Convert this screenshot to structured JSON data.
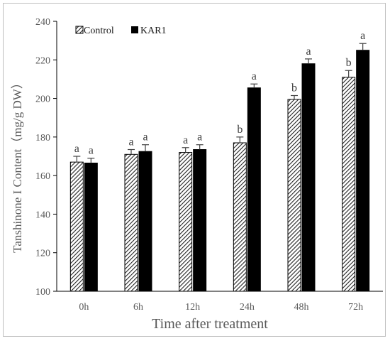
{
  "chart_data": {
    "type": "bar",
    "categories": [
      "0h",
      "6h",
      "12h",
      "24h",
      "48h",
      "72h"
    ],
    "series": [
      {
        "name": "Control",
        "values": [
          167,
          171,
          172,
          177,
          199.5,
          211
        ],
        "errors": [
          3,
          2.5,
          2.5,
          3,
          2,
          3.5
        ],
        "labels": [
          "a",
          "a",
          "a",
          "b",
          "b",
          "b"
        ],
        "color": "#ffffff",
        "pattern": "diagonal-hatch"
      },
      {
        "name": "KAR1",
        "values": [
          166.5,
          172.5,
          173.5,
          205.5,
          218,
          225
        ],
        "errors": [
          2.5,
          3.5,
          2.5,
          2,
          2.5,
          3.5
        ],
        "labels": [
          "a",
          "a",
          "a",
          "a",
          "a",
          "a"
        ],
        "color": "#000000",
        "pattern": "solid"
      }
    ],
    "xlabel": "Time after treatment",
    "ylabel": "Tanshinone I Content（mg/g DW）",
    "ylim": [
      100,
      240
    ],
    "yticks": [
      100,
      120,
      140,
      160,
      180,
      200,
      220,
      240
    ],
    "grid": false,
    "legend_position": "top-left"
  }
}
